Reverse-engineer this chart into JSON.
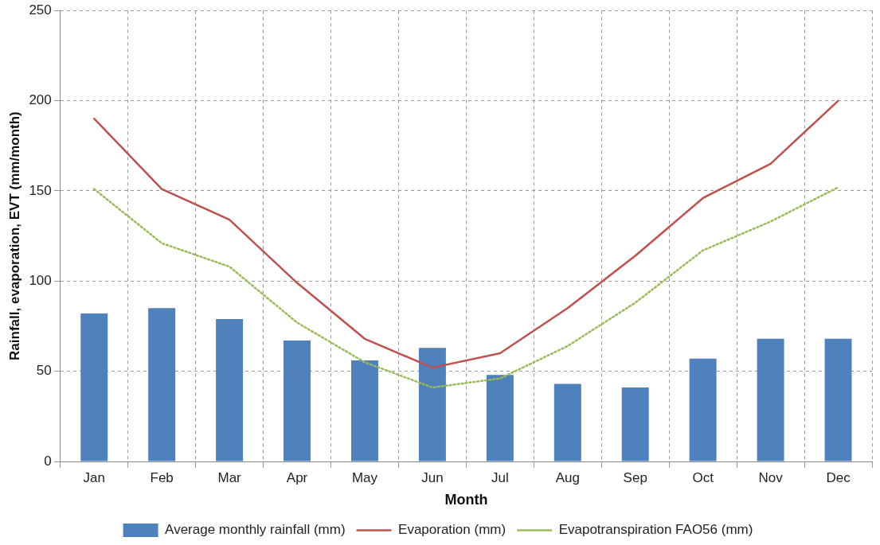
{
  "chart_data": {
    "type": "bar",
    "xlabel": "Month",
    "ylabel": "Rainfall, evaporation, EVT (mm/month)",
    "categories": [
      "Jan",
      "Feb",
      "Mar",
      "Apr",
      "May",
      "Jun",
      "Jul",
      "Aug",
      "Sep",
      "Oct",
      "Nov",
      "Dec"
    ],
    "series": [
      {
        "name": "Average monthly rainfall (mm)",
        "color": "#4f81bd",
        "values": [
          82,
          85,
          79,
          67,
          56,
          63,
          48,
          43,
          41,
          57,
          68,
          68
        ]
      },
      {
        "name": "Evaporation (mm)",
        "type": "line",
        "color": "#c0504d",
        "line_style": "solid",
        "values": [
          190,
          151,
          134,
          99,
          68,
          52,
          60,
          85,
          114,
          146,
          165,
          200
        ]
      },
      {
        "name": "Evapotranspiration FAO56 (mm)",
        "type": "line",
        "color": "#9bbb59",
        "line_style": "dotted",
        "values": [
          151,
          121,
          108,
          77,
          55,
          41,
          46,
          64,
          88,
          117,
          133,
          152
        ]
      }
    ],
    "ylim": [
      0,
      250
    ],
    "yticks": [
      0,
      50,
      100,
      150,
      200,
      250
    ],
    "grid": true,
    "legend": "bottom",
    "marker": "none"
  }
}
